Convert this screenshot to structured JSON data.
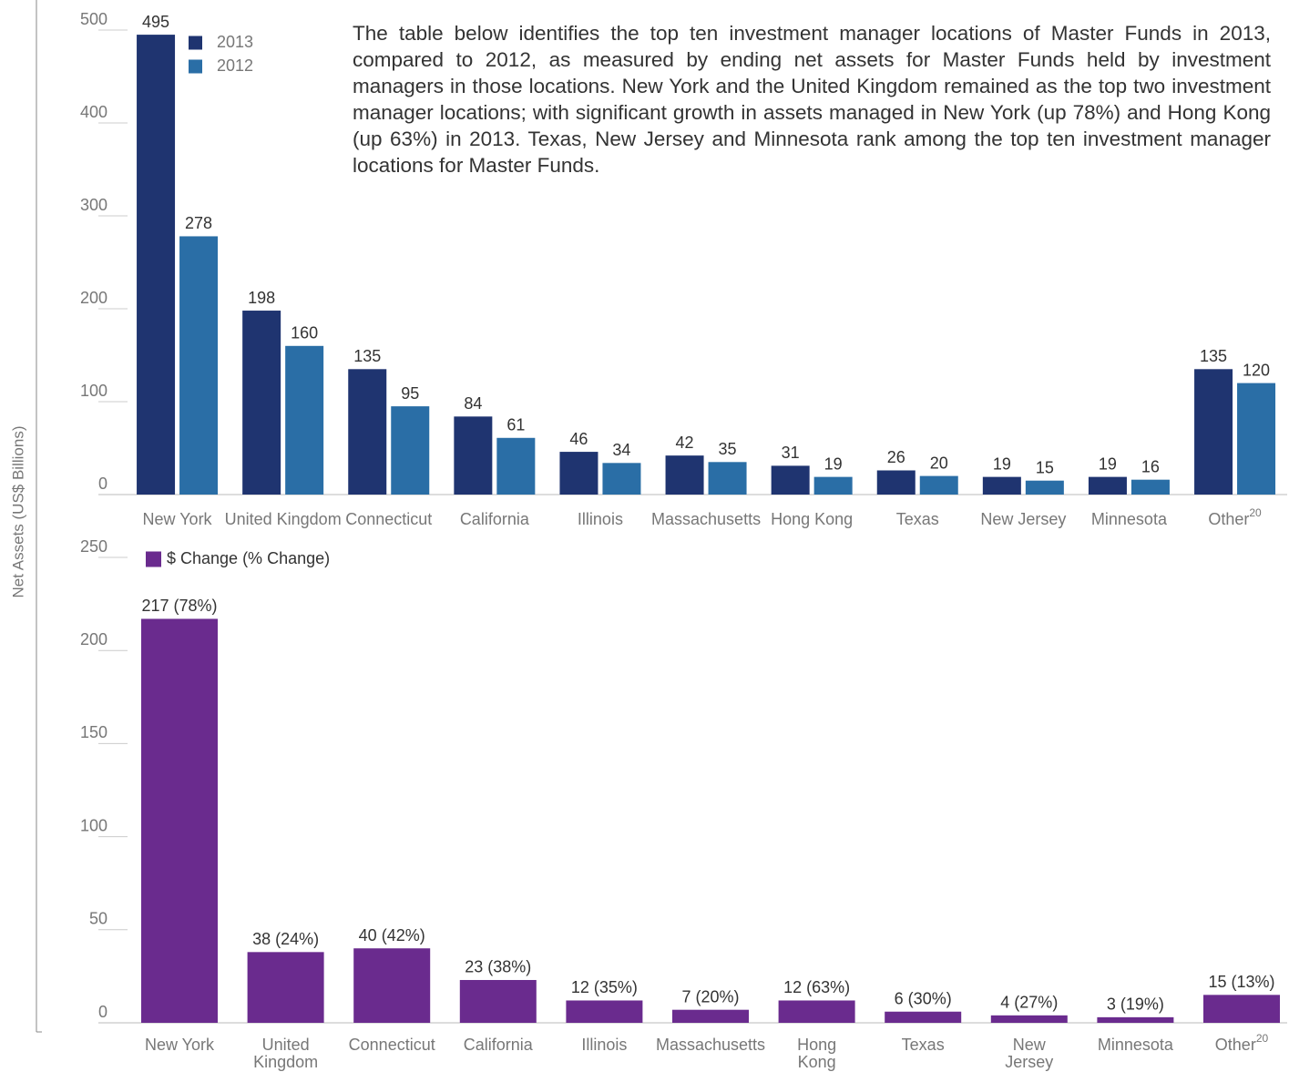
{
  "description": "The table below identifies the top ten investment manager locations of Master Funds in 2013, compared to 2012, as measured by ending net assets for Master Funds held by investment managers in those locations.  New York and the United Kingdom remained as the top two investment manager locations; with significant growth in assets managed in New York (up 78%) and Hong Kong (up 63%) in 2013.  Texas, New Jersey and Minnesota rank among the top ten investment manager locations for Master Funds.",
  "chart_data": [
    {
      "type": "bar",
      "ylabel": "Net Assets (US$ Billions)",
      "categories": [
        "New York",
        "United Kingdom",
        "Connecticut",
        "California",
        "Illinois",
        "Massachusetts",
        "Hong Kong",
        "Texas",
        "New Jersey",
        "Minnesota",
        "Other"
      ],
      "category_notes": [
        null,
        null,
        null,
        null,
        null,
        null,
        null,
        null,
        null,
        null,
        "20"
      ],
      "series": [
        {
          "name": "2013",
          "color": "#1f3470",
          "values": [
            495,
            198,
            135,
            84,
            46,
            42,
            31,
            26,
            19,
            19,
            135
          ]
        },
        {
          "name": "2012",
          "color": "#2a6ea6",
          "values": [
            278,
            160,
            95,
            61,
            34,
            35,
            19,
            20,
            15,
            16,
            120
          ]
        }
      ],
      "ylim": [
        0,
        500
      ],
      "yticks": [
        0,
        100,
        200,
        300,
        400,
        500
      ]
    },
    {
      "type": "bar",
      "categories": [
        "New York",
        "United Kingdom",
        "Connecticut",
        "California",
        "Illinois",
        "Massachusetts",
        "Hong Kong",
        "Texas",
        "New Jersey",
        "Minnesota",
        "Other"
      ],
      "category_notes": [
        null,
        null,
        null,
        null,
        null,
        null,
        null,
        null,
        null,
        null,
        "20"
      ],
      "series": [
        {
          "name": "$ Change (% Change)",
          "color": "#6a2b8e",
          "values": [
            217,
            38,
            40,
            23,
            12,
            7,
            12,
            6,
            4,
            3,
            15
          ],
          "value_labels": [
            "217 (78%)",
            "38 (24%)",
            "40 (42%)",
            "23 (38%)",
            "12 (35%)",
            "7 (20%)",
            "12 (63%)",
            "6 (30%)",
            "4 (27%)",
            "3 (19%)",
            "15 (13%)"
          ]
        }
      ],
      "ylim": [
        0,
        250
      ],
      "yticks": [
        0,
        50,
        100,
        150,
        200,
        250
      ]
    }
  ]
}
